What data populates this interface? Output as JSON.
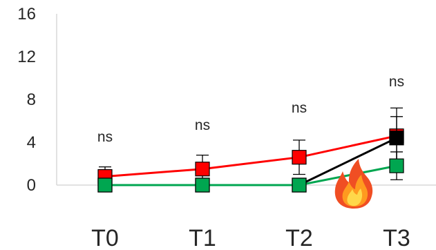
{
  "chart_data": {
    "type": "line",
    "categories": [
      "T0",
      "T1",
      "T2",
      "T3"
    ],
    "ylim": [
      0,
      16
    ],
    "yticks": [
      "0",
      "4",
      "8",
      "12",
      "16"
    ],
    "grid": false,
    "annotations": [
      "ns",
      "ns",
      "ns",
      "ns"
    ],
    "series": [
      {
        "color": "#ff0000",
        "marker": "square",
        "values": [
          0.8,
          1.5,
          2.6,
          4.6
        ],
        "errors": [
          0.9,
          1.3,
          1.6,
          2.6
        ]
      },
      {
        "color": "#000000",
        "marker": "square",
        "values": [
          0.0,
          0.0,
          0.0,
          4.4
        ],
        "errors": [
          0.0,
          0.0,
          0.0,
          2.0
        ]
      },
      {
        "color": "#00a650",
        "marker": "square",
        "values": [
          0.0,
          0.0,
          0.0,
          1.8
        ],
        "errors": [
          0.0,
          0.0,
          0.0,
          1.3
        ]
      }
    ],
    "icons": [
      "fire-icon"
    ]
  }
}
